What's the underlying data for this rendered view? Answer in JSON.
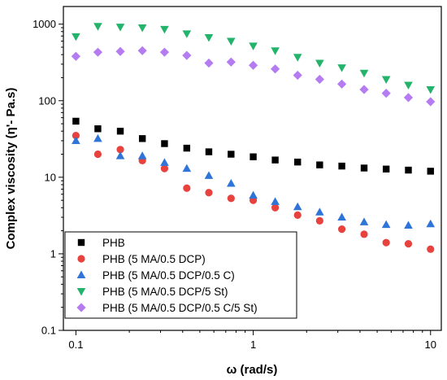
{
  "chart_data": {
    "type": "scatter",
    "title": "",
    "xlabel": "ω (rad/s)",
    "ylabel": "Complex viscosity (η'- Pa.s)",
    "xscale": "log",
    "yscale": "log",
    "xlim": [
      0.085,
      11.5
    ],
    "ylim": [
      0.1,
      1700
    ],
    "xticks": [
      {
        "value": 0.1,
        "label": "0.1"
      },
      {
        "value": 1,
        "label": "1"
      },
      {
        "value": 10,
        "label": "10"
      }
    ],
    "yticks": [
      {
        "value": 0.1,
        "label": "0.1"
      },
      {
        "value": 1,
        "label": "1"
      },
      {
        "value": 10,
        "label": "10"
      },
      {
        "value": 100,
        "label": "100"
      },
      {
        "value": 1000,
        "label": "1000"
      }
    ],
    "grid": false,
    "legend_position": "bottom-left",
    "x": [
      0.1,
      0.133,
      0.178,
      0.237,
      0.316,
      0.422,
      0.562,
      0.75,
      1.0,
      1.33,
      1.78,
      2.37,
      3.16,
      4.22,
      5.62,
      7.5,
      10.0
    ],
    "series": [
      {
        "name": "PHB",
        "color": "#000000",
        "marker": "square",
        "values": [
          54,
          43,
          40,
          32,
          27.5,
          24,
          21.5,
          20,
          18.5,
          16.8,
          15.8,
          14.5,
          14,
          13.2,
          12.8,
          12.4,
          12
        ]
      },
      {
        "name": "PHB (5 MA/0.5 DCP)",
        "color": "#e8423f",
        "marker": "circle",
        "values": [
          35,
          20,
          23,
          16.5,
          13,
          7.2,
          6.3,
          5.3,
          5.0,
          4.0,
          3.2,
          2.7,
          2.1,
          1.8,
          1.4,
          1.35,
          1.15
        ]
      },
      {
        "name": "PHB (5 MA/0.5 DCP/0.5 C)",
        "color": "#2f74d8",
        "marker": "triangle-up",
        "values": [
          30,
          32,
          19,
          19,
          15.5,
          13,
          10.5,
          8.3,
          5.8,
          4.8,
          4.1,
          3.5,
          3.0,
          2.6,
          2.4,
          2.35,
          2.45
        ]
      },
      {
        "name": "PHB (5 MA/0.5 DCP/5 St)",
        "color": "#24b36b",
        "marker": "triangle-down",
        "values": [
          690,
          940,
          920,
          900,
          860,
          750,
          670,
          600,
          520,
          450,
          370,
          310,
          270,
          230,
          190,
          160,
          140
        ]
      },
      {
        "name": "PHB (5 MA/0.5 DCP/0.5 C/5 St)",
        "color": "#b47cf0",
        "marker": "diamond",
        "values": [
          380,
          430,
          440,
          450,
          430,
          390,
          310,
          320,
          290,
          260,
          215,
          190,
          165,
          140,
          125,
          110,
          97
        ]
      }
    ]
  }
}
